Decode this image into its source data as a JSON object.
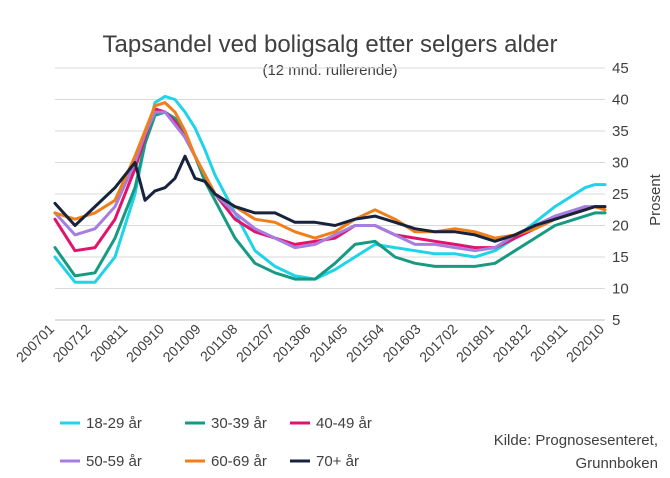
{
  "chart_data": {
    "type": "line",
    "title": "Tapsandel ved boligsalg etter selgers alder",
    "subtitle": "(12 mnd. rullerende)",
    "ylabel": "Prosent",
    "xlabel": "",
    "ylim": [
      5,
      45
    ],
    "yticks": [
      5,
      10,
      15,
      20,
      25,
      30,
      35,
      40,
      45
    ],
    "xlim": [
      "2007-01",
      "2020-10"
    ],
    "xticks": [
      "200701",
      "200712",
      "200811",
      "200910",
      "201009",
      "201108",
      "201207",
      "201306",
      "201405",
      "201504",
      "201603",
      "201702",
      "201801",
      "201812",
      "201911",
      "202010"
    ],
    "grid": "horizontal",
    "legend_position": "bottom",
    "source": [
      "Kilde: Prognosesenteret,",
      "Grunnboken"
    ],
    "x": [
      "2007-01",
      "2007-07",
      "2008-01",
      "2008-07",
      "2009-01",
      "2009-04",
      "2009-07",
      "2009-10",
      "2010-01",
      "2010-04",
      "2010-07",
      "2010-10",
      "2011-01",
      "2011-07",
      "2012-01",
      "2012-07",
      "2013-01",
      "2013-07",
      "2014-01",
      "2014-07",
      "2015-01",
      "2015-07",
      "2016-01",
      "2016-07",
      "2017-01",
      "2017-07",
      "2018-01",
      "2018-07",
      "2019-01",
      "2019-07",
      "2020-01",
      "2020-04",
      "2020-07",
      "2020-10"
    ],
    "series": [
      {
        "name": "18-29 år",
        "color": "#1fd3e8",
        "values": [
          15,
          11,
          11,
          15,
          25,
          33,
          39.5,
          40.5,
          40,
          38,
          35.5,
          32,
          28,
          22,
          16,
          13.5,
          12,
          11.5,
          13,
          15,
          17,
          16.5,
          16,
          15.5,
          15.5,
          15,
          16,
          18,
          20.5,
          23,
          25,
          26,
          26.5,
          26.5
        ]
      },
      {
        "name": "30-39 år",
        "color": "#179a82",
        "values": [
          16.5,
          12,
          12.5,
          18,
          26,
          33,
          37.5,
          38,
          37,
          34.5,
          31,
          27,
          24,
          18,
          14,
          12.5,
          11.5,
          11.5,
          14,
          17,
          17.5,
          15,
          14,
          13.5,
          13.5,
          13.5,
          14,
          16,
          18,
          20,
          21,
          21.5,
          22,
          22
        ]
      },
      {
        "name": "40-49 år",
        "color": "#e0146c",
        "values": [
          21,
          16,
          16.5,
          21,
          29,
          34,
          38.5,
          38,
          36.5,
          34,
          31,
          28,
          25,
          21,
          19,
          18,
          17,
          17.5,
          18,
          20,
          20,
          18.5,
          18,
          17.5,
          17,
          16.5,
          16.5,
          18,
          19.5,
          21,
          22,
          22.5,
          23,
          22.5
        ]
      },
      {
        "name": "50-59 år",
        "color": "#a67de0",
        "values": [
          22,
          18.5,
          19.5,
          23,
          30,
          34.5,
          38,
          38,
          36,
          34,
          31,
          28,
          25,
          22,
          19.5,
          18,
          16.5,
          17,
          18.5,
          20,
          20,
          18.5,
          17,
          17,
          16.5,
          16,
          16.5,
          18.5,
          20,
          21.5,
          22.5,
          23,
          23,
          23
        ]
      },
      {
        "name": "60-69 år",
        "color": "#f07f1a",
        "values": [
          22,
          21,
          22,
          24,
          31,
          35,
          39,
          39.5,
          38,
          35,
          31,
          28,
          25,
          23,
          21,
          20.5,
          19,
          18,
          19,
          21,
          22.5,
          21,
          19,
          19,
          19.5,
          19,
          18,
          18.5,
          19.5,
          21,
          22,
          22.5,
          23,
          22.5
        ]
      },
      {
        "name": "70+ år",
        "color": "#17233c",
        "values": [
          23.5,
          20,
          23,
          26,
          30,
          24,
          25.5,
          26,
          27.5,
          31,
          27.5,
          27,
          25,
          23,
          22,
          22,
          20.5,
          20.5,
          20,
          21,
          21.5,
          20.5,
          19.5,
          19,
          19,
          18.5,
          17.5,
          18.5,
          20,
          21,
          22,
          22.5,
          23,
          23
        ]
      }
    ]
  }
}
